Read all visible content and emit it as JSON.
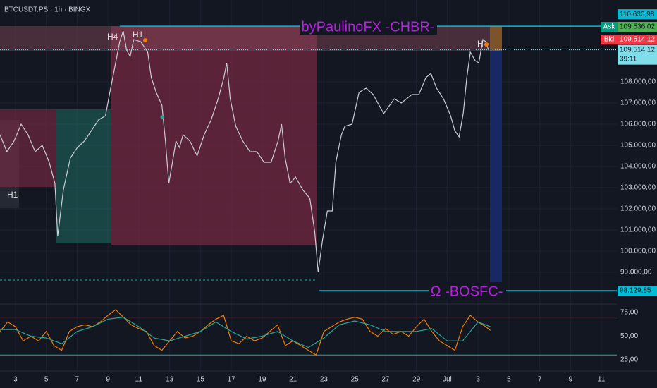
{
  "header": {
    "symbol": "BTCUSDT.PS · 1h · BINGX"
  },
  "annotations": {
    "h4": "H4",
    "h1_top": "H1",
    "h1_left": "H1",
    "h_right": "H",
    "chbr": "byPaulinoFX -CHBR-",
    "bosfc": "Ω -BOSFC-"
  },
  "quotes": {
    "ask_tag": "Ask",
    "ask": "109.536,02",
    "bid_tag": "Bid",
    "bid": "109.514,12",
    "countdown": "39:11"
  },
  "chart_data": [
    {
      "type": "line",
      "grid": true,
      "xlim": [
        -1,
        39
      ],
      "xticks": [
        {
          "value": 0,
          "label": "3"
        },
        {
          "value": 2,
          "label": "5"
        },
        {
          "value": 4,
          "label": "7"
        },
        {
          "value": 6,
          "label": "9"
        },
        {
          "value": 8,
          "label": "11"
        },
        {
          "value": 10,
          "label": "13"
        },
        {
          "value": 12,
          "label": "15"
        },
        {
          "value": 14,
          "label": "17"
        },
        {
          "value": 16,
          "label": "19"
        },
        {
          "value": 18,
          "label": "21"
        },
        {
          "value": 20,
          "label": "23"
        },
        {
          "value": 22,
          "label": "25"
        },
        {
          "value": 24,
          "label": "27"
        },
        {
          "value": 26,
          "label": "29"
        },
        {
          "value": 28,
          "label": "Jul"
        },
        {
          "value": 30,
          "label": "3"
        },
        {
          "value": 32,
          "label": "5"
        },
        {
          "value": 34,
          "label": "7"
        },
        {
          "value": 36,
          "label": "9"
        },
        {
          "value": 38,
          "label": "11"
        }
      ],
      "ylim": [
        97530,
        111870
      ],
      "yticks": [
        {
          "value": 99000,
          "label": "99.000,00"
        },
        {
          "value": 100000,
          "label": "100.000,00"
        },
        {
          "value": 101000,
          "label": "101.000,00"
        },
        {
          "value": 102000,
          "label": "102.000,00"
        },
        {
          "value": 103000,
          "label": "103.000,00"
        },
        {
          "value": 104000,
          "label": "104.000,00"
        },
        {
          "value": 105000,
          "label": "105.000,00"
        },
        {
          "value": 106000,
          "label": "106.000,00"
        },
        {
          "value": 107000,
          "label": "107.000,00"
        },
        {
          "value": 108000,
          "label": "108.000,00"
        }
      ],
      "levels": [
        {
          "value": 110630.98,
          "label": "110.630,98",
          "color": "#00bcd4"
        },
        {
          "value": 98129.85,
          "label": "98.129,85",
          "color": "#00bcd4"
        }
      ],
      "last_price": {
        "value": 109514.12,
        "label": "109.514,12"
      },
      "series": [
        {
          "color": "#c9ccd4",
          "x": [
            -1.0,
            -0.55,
            -0.09,
            0.37,
            0.82,
            1.28,
            1.74,
            2.19,
            2.56,
            2.74,
            3.11,
            3.56,
            4.02,
            4.47,
            4.93,
            5.39,
            5.84,
            6.12,
            6.39,
            6.76,
            6.99,
            7.21,
            7.44,
            7.67,
            8.13,
            8.58,
            8.81,
            9.13,
            9.5,
            9.73,
            9.95,
            10.18,
            10.41,
            10.64,
            10.87,
            11.32,
            11.78,
            12.24,
            12.69,
            13.15,
            13.52,
            13.7,
            13.93,
            14.29,
            14.75,
            15.21,
            15.66,
            16.12,
            16.58,
            17.03,
            17.26,
            17.49,
            17.81,
            18.17,
            18.63,
            19.09,
            19.41,
            19.63,
            19.91,
            20.23,
            20.55,
            20.78,
            21.14,
            21.37,
            21.83,
            22.28,
            22.74,
            23.2,
            23.88,
            24.57,
            25.02,
            25.71,
            26.16,
            26.62,
            26.94,
            27.31,
            27.76,
            28.22,
            28.49,
            28.77,
            29.04,
            29.27,
            29.5,
            29.82,
            30.05,
            30.32,
            30.5,
            30.68
          ],
          "values": [
            105500,
            104700,
            105200,
            106000,
            105500,
            104700,
            105000,
            104200,
            103200,
            100700,
            102900,
            104400,
            104900,
            105200,
            105700,
            106200,
            106400,
            107500,
            108500,
            109900,
            110400,
            109500,
            109200,
            110000,
            109900,
            109400,
            108200,
            107500,
            106900,
            105200,
            103200,
            104200,
            105200,
            104900,
            105500,
            105200,
            104500,
            105500,
            106200,
            107200,
            108200,
            108900,
            107200,
            105900,
            105200,
            104700,
            104700,
            104200,
            104200,
            105200,
            106000,
            104400,
            103200,
            103500,
            102900,
            102500,
            100900,
            99000,
            100500,
            101900,
            101900,
            104200,
            105500,
            105900,
            106000,
            107500,
            107700,
            107400,
            106500,
            107200,
            107000,
            107400,
            107400,
            108200,
            108400,
            107700,
            107200,
            106400,
            105700,
            105400,
            106500,
            108200,
            109400,
            109000,
            108900,
            110000,
            109900,
            109500
          ]
        }
      ]
    },
    {
      "type": "line",
      "xlim": [
        -1,
        39
      ],
      "ylim": [
        17.5,
        83.2
      ],
      "yticks": [
        {
          "value": 25,
          "label": "25,00"
        },
        {
          "value": 50,
          "label": "50,00"
        },
        {
          "value": 75,
          "label": "75,00"
        }
      ],
      "bands": [
        {
          "value": 70,
          "color": "#f23645"
        },
        {
          "value": 30,
          "color": "#22ab94"
        }
      ],
      "series": [
        {
          "color": "#f57c00",
          "x": [
            -1,
            -0.5,
            0,
            0.5,
            1,
            1.5,
            2,
            2.5,
            3,
            3.5,
            4,
            4.5,
            5,
            5.5,
            6,
            6.5,
            7,
            7.5,
            8,
            8.5,
            9,
            9.5,
            10,
            10.5,
            11,
            11.5,
            12,
            12.5,
            13,
            13.5,
            14,
            14.5,
            15,
            15.5,
            16,
            16.5,
            17,
            17.5,
            18,
            18.5,
            19,
            19.5,
            20,
            20.5,
            21,
            21.5,
            22,
            22.5,
            23,
            23.5,
            24,
            24.5,
            25,
            25.5,
            26,
            26.5,
            27,
            27.5,
            28,
            28.5,
            29,
            29.5,
            30,
            30.5,
            30.8
          ],
          "values": [
            55,
            65,
            60,
            45,
            50,
            45,
            55,
            40,
            35,
            55,
            60,
            62,
            60,
            65,
            72,
            78,
            70,
            62,
            58,
            55,
            40,
            35,
            45,
            55,
            48,
            50,
            55,
            62,
            68,
            72,
            45,
            42,
            50,
            45,
            48,
            55,
            62,
            40,
            45,
            40,
            35,
            30,
            55,
            60,
            65,
            68,
            70,
            68,
            55,
            50,
            58,
            52,
            55,
            50,
            60,
            68,
            55,
            45,
            40,
            35,
            60,
            72,
            65,
            60,
            56
          ]
        },
        {
          "color": "#26a69a",
          "x": [
            -1,
            0,
            1,
            2,
            3,
            4,
            5,
            6,
            7,
            8,
            9,
            10,
            11,
            12,
            13,
            14,
            15,
            16,
            17,
            18,
            19,
            20,
            21,
            22,
            23,
            24,
            25,
            26,
            27,
            28,
            29,
            30,
            30.8
          ],
          "values": [
            57,
            57,
            50,
            48,
            42,
            55,
            60,
            68,
            70,
            60,
            48,
            45,
            50,
            55,
            65,
            55,
            47,
            50,
            55,
            45,
            38,
            48,
            62,
            66,
            62,
            55,
            55,
            55,
            58,
            45,
            45,
            65,
            60
          ]
        }
      ]
    }
  ]
}
